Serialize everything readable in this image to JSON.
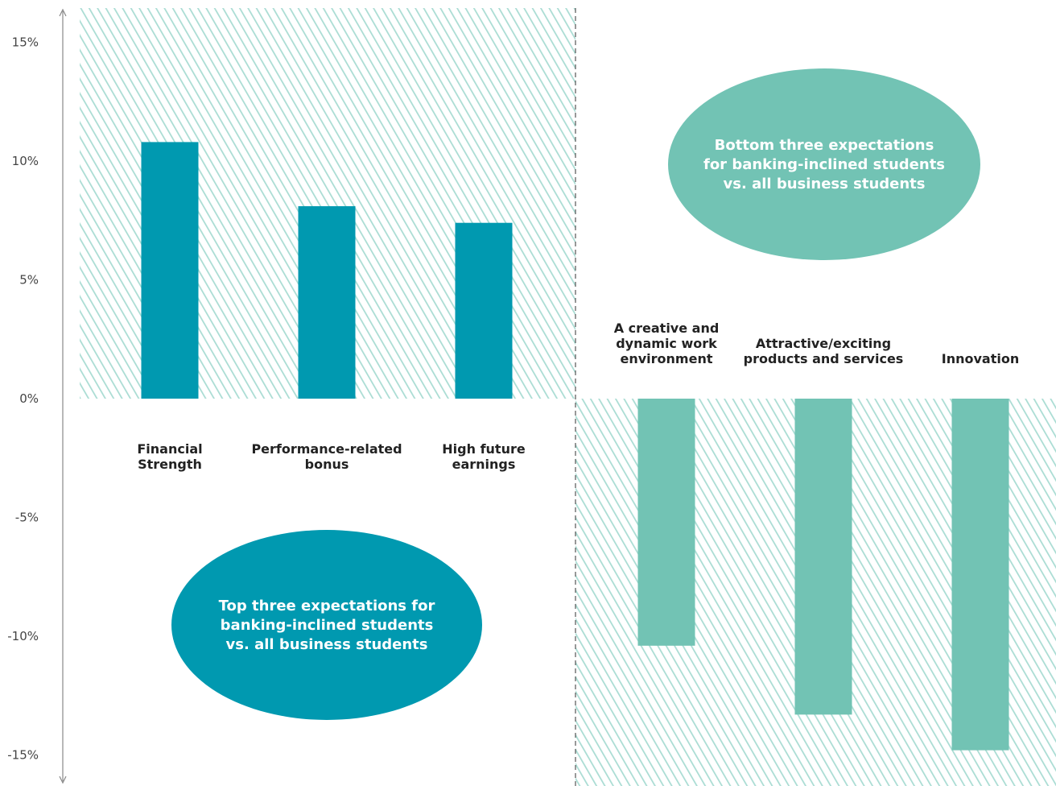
{
  "chart_data": {
    "type": "bar",
    "y_tick_labels": [
      "15%",
      "10%",
      "5%",
      "0%",
      "-5%",
      "-10%",
      "-15%"
    ],
    "ylim": [
      -16.5,
      16.5
    ],
    "grid": false,
    "groups": [
      {
        "name": "top",
        "color": "#0099b0",
        "categories": [
          [
            "Financial",
            "Strength"
          ],
          [
            "Performance-related",
            "bonus"
          ],
          [
            "High future",
            "earnings"
          ]
        ],
        "values": [
          10.8,
          8.1,
          7.4
        ],
        "callout": [
          "Top three expectations for",
          "banking-inclined students",
          "vs. all business students"
        ]
      },
      {
        "name": "bottom",
        "color": "#72c3b4",
        "categories": [
          [
            "A creative and",
            "dynamic work",
            "environment"
          ],
          [
            "Attractive/exciting",
            "products and services"
          ],
          [
            "Innovation"
          ]
        ],
        "values": [
          -10.4,
          -13.3,
          -14.8
        ],
        "callout": [
          "Bottom three expectations",
          "for banking-inclined students",
          "vs. all business students"
        ]
      }
    ]
  },
  "colors": {
    "hatch_line": "#a9dcd3",
    "axis": "#888888",
    "divider": "#555555"
  }
}
